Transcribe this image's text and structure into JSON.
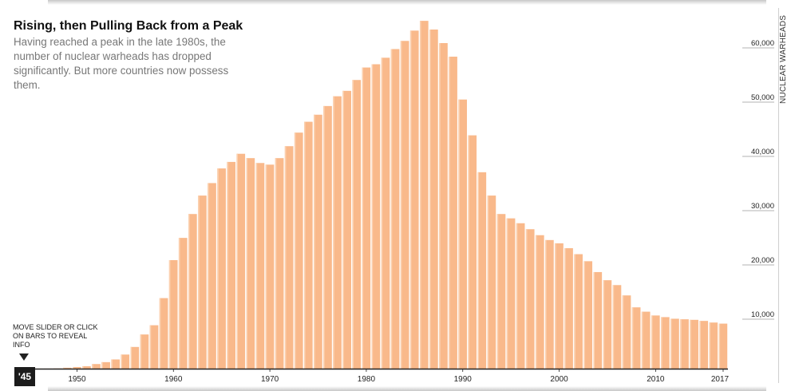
{
  "title": "Rising, then Pulling Back from a Peak",
  "subtitle": "Having reached a peak in the late 1980s, the number of nuclear warheads has dropped significantly. But more countries now possess them.",
  "hint": "MOVE SLIDER OR CLICK ON BARS TO REVEAL INFO",
  "slider": {
    "label": "'45"
  },
  "colors": {
    "bar": "#f9b98b",
    "bar_edge": "#fbd1b0",
    "axis": "#222222",
    "grid": "#9a9a9a"
  },
  "chart_data": {
    "type": "bar",
    "title": "Rising, then Pulling Back from a Peak",
    "ylabel": "NUCLEAR WARHEADS",
    "xlabel": "",
    "ylim": [
      0,
      65000
    ],
    "y_ticks": [
      10000,
      20000,
      30000,
      40000,
      50000,
      60000
    ],
    "y_tick_labels": [
      "10,000",
      "20,000",
      "30,000",
      "40,000",
      "50,000",
      "60,000"
    ],
    "x_tick_labels": [
      {
        "x": 1950,
        "label": "1950"
      },
      {
        "x": 1960,
        "label": "1960"
      },
      {
        "x": 1970,
        "label": "1970"
      },
      {
        "x": 1980,
        "label": "1980"
      },
      {
        "x": 1990,
        "label": "1990"
      },
      {
        "x": 2000,
        "label": "2000"
      },
      {
        "x": 2010,
        "label": "2010"
      },
      {
        "x": 2017,
        "label": "2017"
      }
    ],
    "x": [
      1945,
      1946,
      1947,
      1948,
      1949,
      1950,
      1951,
      1952,
      1953,
      1954,
      1955,
      1956,
      1957,
      1958,
      1959,
      1960,
      1961,
      1962,
      1963,
      1964,
      1965,
      1966,
      1967,
      1968,
      1969,
      1970,
      1971,
      1972,
      1973,
      1974,
      1975,
      1976,
      1977,
      1978,
      1979,
      1980,
      1981,
      1982,
      1983,
      1984,
      1985,
      1986,
      1987,
      1988,
      1989,
      1990,
      1991,
      1992,
      1993,
      1994,
      1995,
      1996,
      1997,
      1998,
      1999,
      2000,
      2001,
      2002,
      2003,
      2004,
      2005,
      2006,
      2007,
      2008,
      2009,
      2010,
      2011,
      2012,
      2013,
      2014,
      2015,
      2016,
      2017
    ],
    "values": [
      2,
      9,
      13,
      50,
      170,
      300,
      450,
      850,
      1200,
      1700,
      2600,
      4000,
      6300,
      8000,
      13000,
      20000,
      24100,
      28500,
      31900,
      34200,
      36900,
      38100,
      39600,
      38800,
      37900,
      37600,
      38800,
      41000,
      43500,
      45500,
      46800,
      48400,
      50200,
      51200,
      53200,
      55500,
      56100,
      57300,
      58900,
      60400,
      62300,
      64100,
      62500,
      60000,
      57500,
      49600,
      43000,
      36200,
      31900,
      28500,
      27700,
      26800,
      25700,
      24600,
      23700,
      23100,
      22200,
      21100,
      19800,
      17800,
      16300,
      15400,
      13500,
      11300,
      10500,
      9800,
      9500,
      9200,
      9100,
      9000,
      8800,
      8500,
      8300
    ]
  }
}
